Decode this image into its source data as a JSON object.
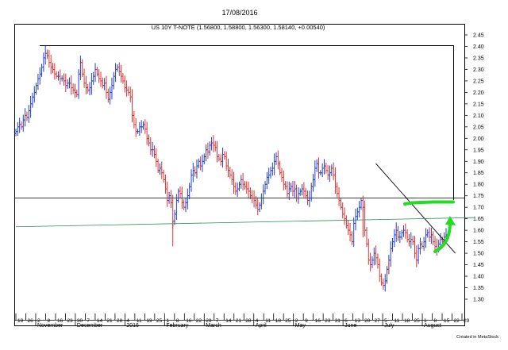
{
  "chart_data": {
    "type": "ohlc",
    "date": "17/08/2016",
    "title": "US 10Y T-NOTE (1.56800, 1.58800, 1.56300, 1.58140, +0.00540)",
    "credit": "Created in MetaStock",
    "ylim": [
      1.25,
      2.45
    ],
    "y_ticks": [
      "2.45",
      "2.40",
      "2.35",
      "2.30",
      "2.25",
      "2.20",
      "2.15",
      "2.10",
      "2.05",
      "2.00",
      "1.95",
      "1.90",
      "1.85",
      "1.80",
      "1.75",
      "1.70",
      "1.65",
      "1.60",
      "1.55",
      "1.50",
      "1.45",
      "1.40",
      "1.35",
      "1.30"
    ],
    "x_day_ticks": [
      "19",
      "26",
      "2",
      "9",
      "16",
      "23",
      "30",
      "7",
      "14",
      "21",
      "28",
      "4",
      "11",
      "19",
      "25",
      "1",
      "8",
      "16",
      "22",
      "29",
      "7",
      "14",
      "21",
      "28",
      "4",
      "11",
      "18",
      "25",
      "2",
      "9",
      "16",
      "23",
      "31",
      "6",
      "13",
      "20",
      "27",
      "5",
      "11",
      "18",
      "25",
      "1",
      "8",
      "15",
      "22",
      "29"
    ],
    "x_month_labels": [
      "November",
      "December",
      "2016",
      "February",
      "March",
      "April",
      "May",
      "June",
      "July",
      "August"
    ],
    "colors": {
      "up": "#1f3fd0",
      "down": "#e03030",
      "frame": "#000000",
      "trendline": "#000000",
      "support": "#2e8b57",
      "annotation": "#22dd22"
    },
    "series_close": [
      2.03,
      2.05,
      2.06,
      2.05,
      2.08,
      2.1,
      2.09,
      2.12,
      2.15,
      2.18,
      2.2,
      2.23,
      2.26,
      2.28,
      2.31,
      2.35,
      2.37,
      2.36,
      2.33,
      2.31,
      2.3,
      2.28,
      2.27,
      2.27,
      2.26,
      2.26,
      2.25,
      2.23,
      2.24,
      2.24,
      2.22,
      2.21,
      2.2,
      2.19,
      2.28,
      2.33,
      2.28,
      2.24,
      2.22,
      2.21,
      2.22,
      2.25,
      2.27,
      2.3,
      2.28,
      2.26,
      2.25,
      2.23,
      2.24,
      2.2,
      2.17,
      2.2,
      2.23,
      2.27,
      2.3,
      2.31,
      2.29,
      2.27,
      2.25,
      2.22,
      2.21,
      2.2,
      2.18,
      2.1,
      2.06,
      2.03,
      2.03,
      2.05,
      2.05,
      2.06,
      2.04,
      2.0,
      1.98,
      1.95,
      1.95,
      1.93,
      1.9,
      1.86,
      1.87,
      1.85,
      1.82,
      1.78,
      1.73,
      1.75,
      1.72,
      1.64,
      1.67,
      1.73,
      1.77,
      1.76,
      1.72,
      1.7,
      1.72,
      1.75,
      1.79,
      1.84,
      1.86,
      1.85,
      1.88,
      1.9,
      1.88,
      1.9,
      1.92,
      1.95,
      1.94,
      1.97,
      1.98,
      1.97,
      1.96,
      1.92,
      1.91,
      1.9,
      1.93,
      1.92,
      1.88,
      1.86,
      1.84,
      1.82,
      1.79,
      1.77,
      1.78,
      1.8,
      1.82,
      1.8,
      1.79,
      1.78,
      1.77,
      1.75,
      1.74,
      1.73,
      1.71,
      1.69,
      1.71,
      1.74,
      1.77,
      1.8,
      1.83,
      1.84,
      1.86,
      1.87,
      1.9,
      1.92,
      1.89,
      1.85,
      1.83,
      1.8,
      1.79,
      1.76,
      1.78,
      1.79,
      1.77,
      1.78,
      1.74,
      1.76,
      1.77,
      1.78,
      1.77,
      1.75,
      1.73,
      1.74,
      1.79,
      1.82,
      1.87,
      1.89,
      1.85,
      1.85,
      1.87,
      1.88,
      1.86,
      1.84,
      1.85,
      1.87,
      1.84,
      1.79,
      1.76,
      1.73,
      1.7,
      1.67,
      1.65,
      1.62,
      1.6,
      1.58,
      1.55,
      1.63,
      1.66,
      1.68,
      1.7,
      1.73,
      1.7,
      1.6,
      1.54,
      1.47,
      1.45,
      1.47,
      1.5,
      1.48,
      1.45,
      1.4,
      1.37,
      1.36,
      1.38,
      1.43,
      1.47,
      1.52,
      1.55,
      1.58,
      1.6,
      1.57,
      1.57,
      1.59,
      1.6,
      1.59,
      1.56,
      1.55,
      1.56,
      1.55,
      1.5,
      1.47,
      1.52,
      1.54,
      1.53,
      1.55,
      1.58,
      1.59,
      1.57,
      1.58,
      1.55,
      1.53,
      1.52,
      1.54,
      1.56,
      1.55,
      1.57,
      1.58
    ],
    "trendline_points": [
      {
        "i": 195,
        "y": 1.89
      },
      {
        "i": 238,
        "y": 1.5
      }
    ],
    "support_line_points": [
      {
        "i": 0,
        "y": 1.615
      },
      {
        "i": 248,
        "y": 1.655
      }
    ]
  }
}
